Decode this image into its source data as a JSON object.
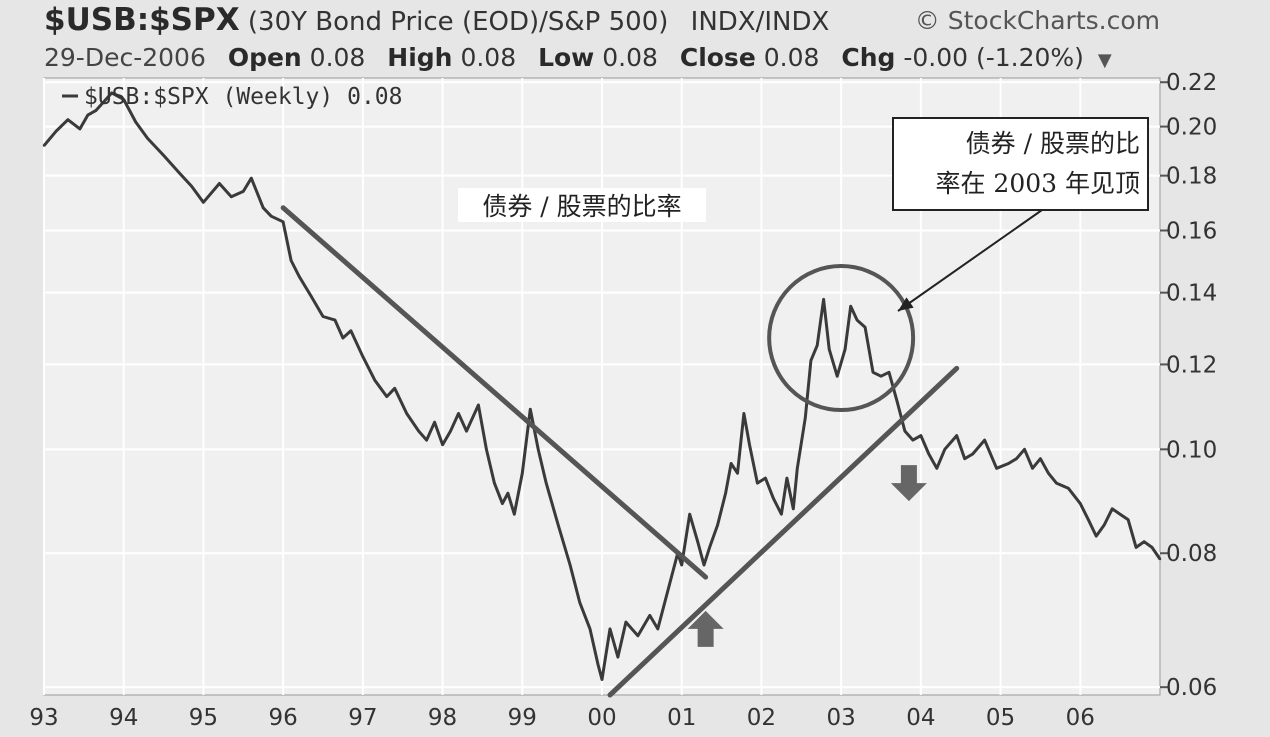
{
  "header": {
    "symbol": "$USB:$SPX",
    "description": "(30Y Bond Price (EOD)/S&P 500)",
    "exchange": "INDX/INDX",
    "brand": "© StockCharts.com",
    "date": "29-Dec-2006",
    "open_label": "Open",
    "open_value": "0.08",
    "high_label": "High",
    "high_value": "0.08",
    "low_label": "Low",
    "low_value": "0.08",
    "close_label": "Close",
    "close_value": "0.08",
    "chg_label": "Chg",
    "chg_value": "-0.00 (-1.20%)"
  },
  "colors": {
    "background": "#e6e6e6",
    "plot_bg": "#f0f0f0",
    "line": "#3a3a3a",
    "grid": "#ffffff",
    "annotation": "#555555"
  },
  "chart_data": {
    "type": "line",
    "title": "$USB:$SPX (30Y Bond Price (EOD)/S&P 500)",
    "legend": "$USB:$SPX (Weekly) 0.08",
    "y_scale": "log",
    "ylim": [
      0.059,
      0.222
    ],
    "y_ticks": [
      0.06,
      0.08,
      0.1,
      0.12,
      0.14,
      0.16,
      0.18,
      0.2,
      0.22
    ],
    "y_tick_labels": [
      "0.06",
      "0.08",
      "0.10",
      "0.12",
      "0.14",
      "0.16",
      "0.18",
      "0.20",
      "0.22"
    ],
    "xlim": [
      1993.0,
      2007.0
    ],
    "x_ticks": [
      1993,
      1994,
      1995,
      1996,
      1997,
      1998,
      1999,
      2000,
      2001,
      2002,
      2003,
      2004,
      2005,
      2006
    ],
    "x_tick_labels": [
      "93",
      "94",
      "95",
      "96",
      "97",
      "98",
      "99",
      "00",
      "01",
      "02",
      "03",
      "04",
      "05",
      "06"
    ],
    "grid": true,
    "legend_position": "top-left",
    "series": [
      {
        "name": "$USB:$SPX (Weekly)",
        "x": [
          1993.0,
          1993.15,
          1993.3,
          1993.45,
          1993.55,
          1993.65,
          1993.75,
          1993.85,
          1994.0,
          1994.15,
          1994.3,
          1994.5,
          1994.7,
          1994.85,
          1995.0,
          1995.2,
          1995.35,
          1995.5,
          1995.6,
          1995.75,
          1995.85,
          1996.0,
          1996.1,
          1996.2,
          1996.35,
          1996.5,
          1996.65,
          1996.75,
          1996.85,
          1997.0,
          1997.15,
          1997.3,
          1997.4,
          1997.55,
          1997.7,
          1997.8,
          1997.9,
          1998.0,
          1998.1,
          1998.2,
          1998.3,
          1998.45,
          1998.55,
          1998.65,
          1998.75,
          1998.82,
          1998.9,
          1999.0,
          1999.1,
          1999.2,
          1999.3,
          1999.45,
          1999.6,
          1999.72,
          1999.85,
          1999.95,
          2000.0,
          2000.1,
          2000.2,
          2000.3,
          2000.45,
          2000.6,
          2000.7,
          2000.85,
          2000.95,
          2001.0,
          2001.1,
          2001.2,
          2001.28,
          2001.35,
          2001.45,
          2001.55,
          2001.62,
          2001.7,
          2001.78,
          2001.85,
          2001.95,
          2002.05,
          2002.15,
          2002.25,
          2002.32,
          2002.4,
          2002.45,
          2002.55,
          2002.62,
          2002.7,
          2002.78,
          2002.85,
          2002.95,
          2003.05,
          2003.12,
          2003.2,
          2003.3,
          2003.4,
          2003.5,
          2003.6,
          2003.7,
          2003.8,
          2003.9,
          2004.0,
          2004.1,
          2004.2,
          2004.3,
          2004.45,
          2004.55,
          2004.65,
          2004.8,
          2004.95,
          2005.1,
          2005.2,
          2005.3,
          2005.4,
          2005.5,
          2005.6,
          2005.7,
          2005.85,
          2006.0,
          2006.1,
          2006.2,
          2006.3,
          2006.4,
          2006.5,
          2006.6,
          2006.7,
          2006.8,
          2006.9,
          2007.0
        ],
        "y": [
          0.192,
          0.198,
          0.203,
          0.199,
          0.205,
          0.207,
          0.211,
          0.215,
          0.212,
          0.202,
          0.195,
          0.188,
          0.181,
          0.176,
          0.17,
          0.177,
          0.172,
          0.174,
          0.179,
          0.168,
          0.165,
          0.163,
          0.15,
          0.145,
          0.139,
          0.133,
          0.132,
          0.127,
          0.129,
          0.122,
          0.116,
          0.112,
          0.114,
          0.108,
          0.104,
          0.102,
          0.106,
          0.101,
          0.104,
          0.108,
          0.104,
          0.11,
          0.1,
          0.093,
          0.089,
          0.091,
          0.087,
          0.095,
          0.109,
          0.1,
          0.093,
          0.085,
          0.078,
          0.072,
          0.068,
          0.063,
          0.061,
          0.068,
          0.064,
          0.069,
          0.067,
          0.07,
          0.068,
          0.075,
          0.08,
          0.078,
          0.087,
          0.082,
          0.078,
          0.081,
          0.085,
          0.091,
          0.097,
          0.095,
          0.108,
          0.101,
          0.093,
          0.094,
          0.09,
          0.087,
          0.094,
          0.088,
          0.096,
          0.107,
          0.121,
          0.125,
          0.138,
          0.124,
          0.117,
          0.124,
          0.136,
          0.132,
          0.13,
          0.118,
          0.117,
          0.118,
          0.111,
          0.104,
          0.102,
          0.103,
          0.099,
          0.096,
          0.1,
          0.103,
          0.098,
          0.099,
          0.102,
          0.096,
          0.097,
          0.098,
          0.1,
          0.096,
          0.098,
          0.095,
          0.093,
          0.092,
          0.089,
          0.086,
          0.083,
          0.085,
          0.088,
          0.087,
          0.086,
          0.081,
          0.082,
          0.081,
          0.079
        ]
      }
    ],
    "annotations": [
      {
        "text": "债券 / 股票的比率"
      },
      {
        "text": "债券 / 股票的比率在 2003 年见顶",
        "line1": "债券 / 股票的比",
        "line2": "率在 2003 年见顶"
      }
    ],
    "trendlines": [
      {
        "from": [
          1996.0,
          0.168
        ],
        "to": [
          2001.3,
          0.076
        ]
      },
      {
        "from": [
          2000.1,
          0.059
        ],
        "to": [
          2004.45,
          0.119
        ]
      }
    ],
    "highlight_circle_center": [
      2003.0,
      0.127
    ],
    "arrows": [
      {
        "direction": "up",
        "at": [
          2001.3,
          0.068
        ]
      },
      {
        "direction": "down",
        "at": [
          2003.85,
          0.093
        ]
      }
    ]
  }
}
